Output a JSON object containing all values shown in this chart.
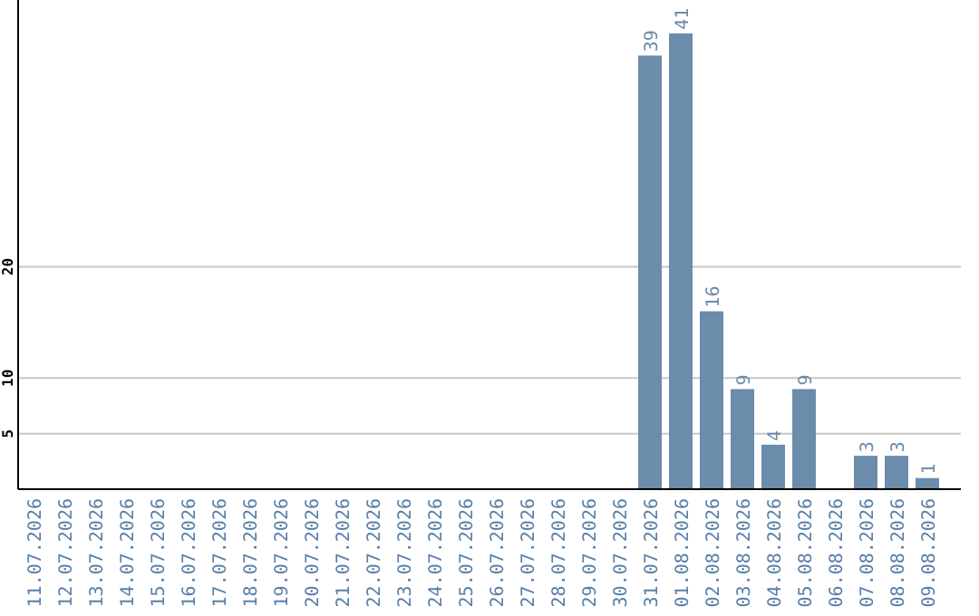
{
  "chart_data": {
    "type": "bar",
    "categories": [
      "11.07.2026",
      "12.07.2026",
      "13.07.2026",
      "14.07.2026",
      "15.07.2026",
      "16.07.2026",
      "17.07.2026",
      "18.07.2026",
      "19.07.2026",
      "20.07.2026",
      "21.07.2026",
      "22.07.2026",
      "23.07.2026",
      "24.07.2026",
      "25.07.2026",
      "26.07.2026",
      "27.07.2026",
      "28.07.2026",
      "29.07.2026",
      "30.07.2026",
      "31.07.2026",
      "01.08.2026",
      "02.08.2026",
      "03.08.2026",
      "04.08.2026",
      "05.08.2026",
      "06.08.2026",
      "07.08.2026",
      "08.08.2026",
      "09.08.2026"
    ],
    "values": [
      0,
      0,
      0,
      0,
      0,
      0,
      0,
      0,
      0,
      0,
      0,
      0,
      0,
      0,
      0,
      0,
      0,
      0,
      0,
      0,
      39,
      41,
      16,
      9,
      4,
      9,
      0,
      3,
      3,
      1
    ],
    "value_labels": [
      null,
      null,
      null,
      null,
      null,
      null,
      null,
      null,
      null,
      null,
      null,
      null,
      null,
      null,
      null,
      null,
      null,
      null,
      null,
      null,
      "39",
      "41",
      "16",
      "9",
      "4",
      "9",
      null,
      "3",
      "3",
      "1"
    ],
    "color": "#6b8caa",
    "ylim": [
      0,
      44
    ],
    "yticks": [
      5,
      10,
      20
    ],
    "grid": "y"
  }
}
